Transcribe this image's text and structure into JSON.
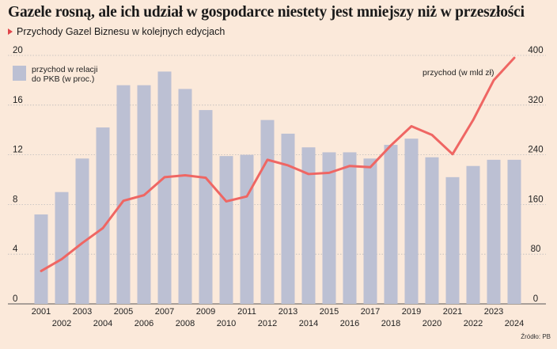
{
  "header": {
    "title": "Gazele rosną, ale ich udział w gospodarce niestety jest mniejszy niż w przeszłości",
    "subtitle": "Przychody Gazel Biznesu w kolejnych edycjach"
  },
  "footer": {
    "source": "Źródło: PB"
  },
  "colors": {
    "bars": "#bcc0d3",
    "line": "#ef6663",
    "background": "#fbe9da",
    "grid": "#bcbcbc"
  },
  "chart_data": {
    "type": "bar",
    "categories": [
      "2001",
      "2002",
      "2003",
      "2004",
      "2005",
      "2006",
      "2007",
      "2008",
      "2009",
      "2010",
      "2011",
      "2012",
      "2013",
      "2014",
      "2015",
      "2016",
      "2017",
      "2018",
      "2019",
      "2020",
      "2021",
      "2022",
      "2023",
      "2024"
    ],
    "series": [
      {
        "name": "przychod w relacji do PKB (w proc.)",
        "type": "bar",
        "axis": "left",
        "values": [
          7.2,
          9.0,
          11.7,
          14.2,
          17.6,
          17.6,
          18.7,
          17.3,
          15.6,
          11.9,
          12.0,
          14.8,
          13.7,
          12.6,
          12.2,
          12.2,
          11.7,
          12.8,
          13.3,
          11.8,
          10.2,
          11.1,
          11.6,
          11.6
        ]
      },
      {
        "name": "przychod (w mld zł)",
        "type": "line",
        "axis": "right",
        "values": [
          53,
          72,
          98,
          122,
          166,
          175,
          204,
          207,
          203,
          165,
          173,
          232,
          223,
          209,
          211,
          222,
          220,
          255,
          286,
          272,
          241,
          296,
          360,
          396
        ]
      }
    ],
    "y_left": {
      "range": [
        0,
        20
      ],
      "ticks": [
        "0",
        "4",
        "8",
        "12",
        "16",
        "20"
      ]
    },
    "y_right": {
      "range": [
        0,
        400
      ],
      "ticks": [
        "0",
        "80",
        "160",
        "240",
        "320",
        "400"
      ]
    },
    "grid": true,
    "legend_position": "top-left"
  }
}
